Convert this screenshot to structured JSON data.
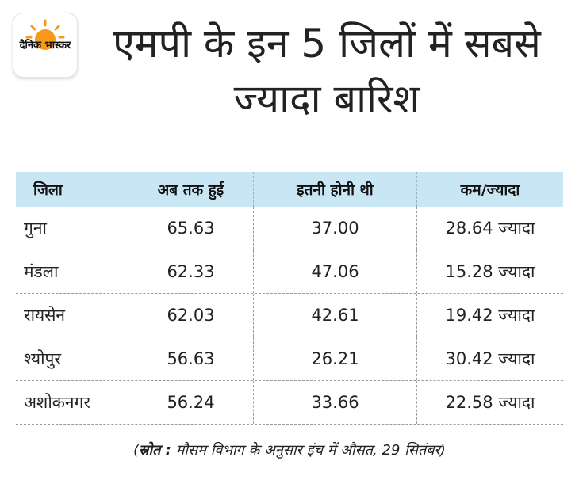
{
  "logo": {
    "text": "दैनिक भास्कर",
    "sun_color": "#f79a1c"
  },
  "title": "एमपी के इन 5 जिलों में सबसे ज्यादा बारिश",
  "table": {
    "headers": [
      "जिला",
      "अब तक हुई",
      "इतनी होनी थी",
      "कम/ज्यादा"
    ],
    "rows": [
      [
        "गुना",
        "65.63",
        "37.00",
        "28.64 ज्यादा"
      ],
      [
        "मंडला",
        "62.33",
        "47.06",
        "15.28 ज्यादा"
      ],
      [
        "रायसेन",
        "62.03",
        "42.61",
        "19.42 ज्यादा"
      ],
      [
        "श्योपुर",
        "56.63",
        "26.21",
        "30.42 ज्यादा"
      ],
      [
        "अशोकनगर",
        "56.24",
        "33.66",
        "22.58 ज्यादा"
      ]
    ],
    "header_color": "#c9e6f5"
  },
  "source": {
    "label": "स्रोत :",
    "text": "मौसम विभाग के अनुसार इंच में औसत, 29 सितंबर"
  }
}
